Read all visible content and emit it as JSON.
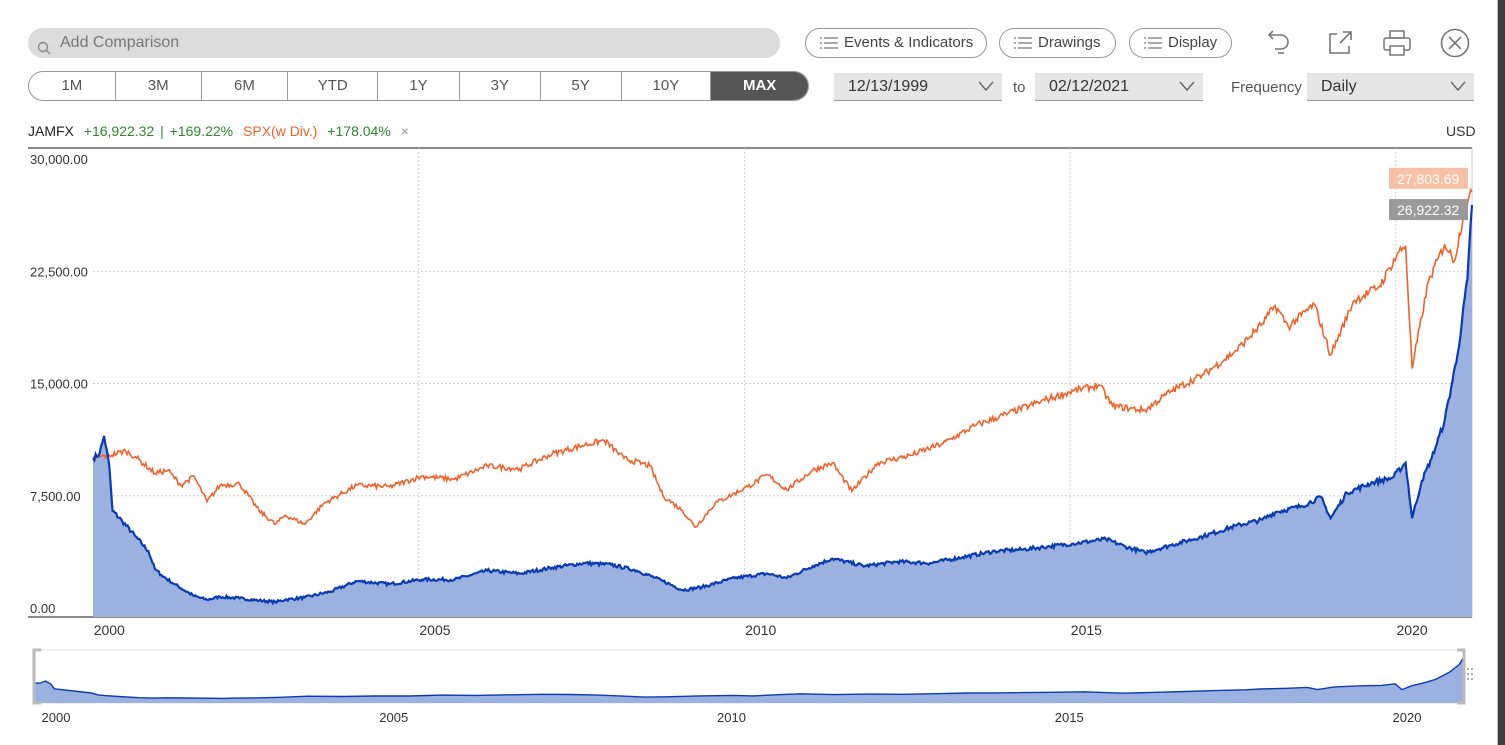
{
  "toolbar": {
    "search_placeholder": "Add Comparison",
    "events_label": "Events & Indicators",
    "drawings_label": "Drawings",
    "display_label": "Display",
    "undo_icon": "undo-icon",
    "popout_icon": "popout-icon",
    "print_icon": "print-icon",
    "close_icon": "close-icon"
  },
  "ranges": [
    {
      "label": "1M"
    },
    {
      "label": "3M"
    },
    {
      "label": "6M"
    },
    {
      "label": "YTD"
    },
    {
      "label": "1Y"
    },
    {
      "label": "3Y"
    },
    {
      "label": "5Y"
    },
    {
      "label": "10Y"
    },
    {
      "label": "MAX",
      "active": true
    }
  ],
  "date_range": {
    "start": "12/13/1999",
    "to_label": "to",
    "end": "02/12/2021",
    "frequency_label": "Frequency",
    "frequency_value": "Daily"
  },
  "legend": {
    "fund_symbol": "JAMFX",
    "fund_change": "+16,922.32",
    "separator": "|",
    "fund_pct": "+169.22%",
    "index_name": "SPX(w Div.)",
    "index_pct": "+178.04%",
    "remove_glyph": "×",
    "currency": "USD"
  },
  "colors": {
    "fund_line": "#0b3bb3",
    "fund_area": "#9bb1e0",
    "index_line": "#f0622a",
    "positive": "#2a8a2a",
    "index_badge": "#f7c1a6",
    "fund_badge": "#9a9a9a"
  },
  "chart_data": {
    "type": "line",
    "x_ticks": [
      "2000",
      "2005",
      "2010",
      "2015",
      "2020"
    ],
    "y_ticks": [
      "30,000.00",
      "22,500.00",
      "15,000.00",
      "7,500.00",
      "0.00"
    ],
    "ylim": [
      0,
      30000
    ],
    "grid": true,
    "last_values": {
      "index": "27,803.69",
      "fund": "26,922.32"
    },
    "series": [
      {
        "name": "JAMFX",
        "points": [
          [
            1999.95,
            10000
          ],
          [
            2000.05,
            10300
          ],
          [
            2000.12,
            11500
          ],
          [
            2000.2,
            9500
          ],
          [
            2000.25,
            6500
          ],
          [
            2000.4,
            5800
          ],
          [
            2000.6,
            4800
          ],
          [
            2000.8,
            3800
          ],
          [
            2000.9,
            2600
          ],
          [
            2001.0,
            2200
          ],
          [
            2001.2,
            1600
          ],
          [
            2001.5,
            800
          ],
          [
            2001.7,
            550
          ],
          [
            2001.9,
            750
          ],
          [
            2002.2,
            650
          ],
          [
            2002.5,
            500
          ],
          [
            2002.75,
            400
          ],
          [
            2002.9,
            550
          ],
          [
            2003.2,
            700
          ],
          [
            2003.6,
            1100
          ],
          [
            2004.0,
            1800
          ],
          [
            2004.5,
            1600
          ],
          [
            2005.0,
            1900
          ],
          [
            2005.5,
            1900
          ],
          [
            2006.0,
            2500
          ],
          [
            2006.5,
            2300
          ],
          [
            2007.0,
            2700
          ],
          [
            2007.5,
            3000
          ],
          [
            2007.9,
            2900
          ],
          [
            2008.3,
            2500
          ],
          [
            2008.7,
            1800
          ],
          [
            2009.0,
            1200
          ],
          [
            2009.3,
            1400
          ],
          [
            2009.8,
            2000
          ],
          [
            2010.3,
            2300
          ],
          [
            2010.6,
            2000
          ],
          [
            2011.0,
            2800
          ],
          [
            2011.3,
            3300
          ],
          [
            2011.8,
            2800
          ],
          [
            2012.3,
            3100
          ],
          [
            2012.8,
            3000
          ],
          [
            2013.3,
            3400
          ],
          [
            2013.8,
            3800
          ],
          [
            2014.2,
            3900
          ],
          [
            2014.6,
            4100
          ],
          [
            2015.0,
            4300
          ],
          [
            2015.5,
            4600
          ],
          [
            2015.8,
            4100
          ],
          [
            2016.1,
            3700
          ],
          [
            2016.5,
            4200
          ],
          [
            2017.0,
            4800
          ],
          [
            2017.5,
            5500
          ],
          [
            2017.9,
            5900
          ],
          [
            2018.1,
            6400
          ],
          [
            2018.5,
            6800
          ],
          [
            2018.8,
            7400
          ],
          [
            2018.95,
            6000
          ],
          [
            2019.2,
            7700
          ],
          [
            2019.6,
            8400
          ],
          [
            2019.9,
            8700
          ],
          [
            2020.1,
            9700
          ],
          [
            2020.2,
            6000
          ],
          [
            2020.35,
            8500
          ],
          [
            2020.5,
            10000
          ],
          [
            2020.7,
            12500
          ],
          [
            2020.9,
            17000
          ],
          [
            2021.05,
            22000
          ],
          [
            2021.12,
            26922
          ]
        ]
      },
      {
        "name": "SPX(w Div.)",
        "points": [
          [
            1999.95,
            10000
          ],
          [
            2000.2,
            10200
          ],
          [
            2000.45,
            10500
          ],
          [
            2000.6,
            10100
          ],
          [
            2000.9,
            9000
          ],
          [
            2001.1,
            9200
          ],
          [
            2001.3,
            8200
          ],
          [
            2001.5,
            8800
          ],
          [
            2001.7,
            7100
          ],
          [
            2001.9,
            8200
          ],
          [
            2002.2,
            8300
          ],
          [
            2002.5,
            6500
          ],
          [
            2002.75,
            5600
          ],
          [
            2002.9,
            6200
          ],
          [
            2003.2,
            5600
          ],
          [
            2003.5,
            7000
          ],
          [
            2004.0,
            8200
          ],
          [
            2004.5,
            8100
          ],
          [
            2005.0,
            8800
          ],
          [
            2005.5,
            8600
          ],
          [
            2006.0,
            9500
          ],
          [
            2006.5,
            9300
          ],
          [
            2007.0,
            10300
          ],
          [
            2007.5,
            10900
          ],
          [
            2007.8,
            11200
          ],
          [
            2008.1,
            10000
          ],
          [
            2008.5,
            9500
          ],
          [
            2008.7,
            7500
          ],
          [
            2009.0,
            6500
          ],
          [
            2009.2,
            5400
          ],
          [
            2009.5,
            7000
          ],
          [
            2010.0,
            8100
          ],
          [
            2010.3,
            8900
          ],
          [
            2010.6,
            7900
          ],
          [
            2011.0,
            9200
          ],
          [
            2011.3,
            9700
          ],
          [
            2011.6,
            7800
          ],
          [
            2012.0,
            9700
          ],
          [
            2012.5,
            10200
          ],
          [
            2013.0,
            11000
          ],
          [
            2013.5,
            12200
          ],
          [
            2014.0,
            13000
          ],
          [
            2014.5,
            13800
          ],
          [
            2015.0,
            14500
          ],
          [
            2015.4,
            14900
          ],
          [
            2015.6,
            13500
          ],
          [
            2016.1,
            13200
          ],
          [
            2016.5,
            14500
          ],
          [
            2017.0,
            15600
          ],
          [
            2017.5,
            17200
          ],
          [
            2017.9,
            19000
          ],
          [
            2018.1,
            20200
          ],
          [
            2018.3,
            18800
          ],
          [
            2018.7,
            20300
          ],
          [
            2018.95,
            16900
          ],
          [
            2019.3,
            20500
          ],
          [
            2019.7,
            21500
          ],
          [
            2020.0,
            23800
          ],
          [
            2020.1,
            24200
          ],
          [
            2020.2,
            16000
          ],
          [
            2020.45,
            21800
          ],
          [
            2020.7,
            24300
          ],
          [
            2020.85,
            23200
          ],
          [
            2021.0,
            26500
          ],
          [
            2021.12,
            27804
          ]
        ]
      }
    ],
    "navigator": {
      "x_ticks": [
        "2000",
        "2005",
        "2010",
        "2015",
        "2020"
      ]
    }
  }
}
